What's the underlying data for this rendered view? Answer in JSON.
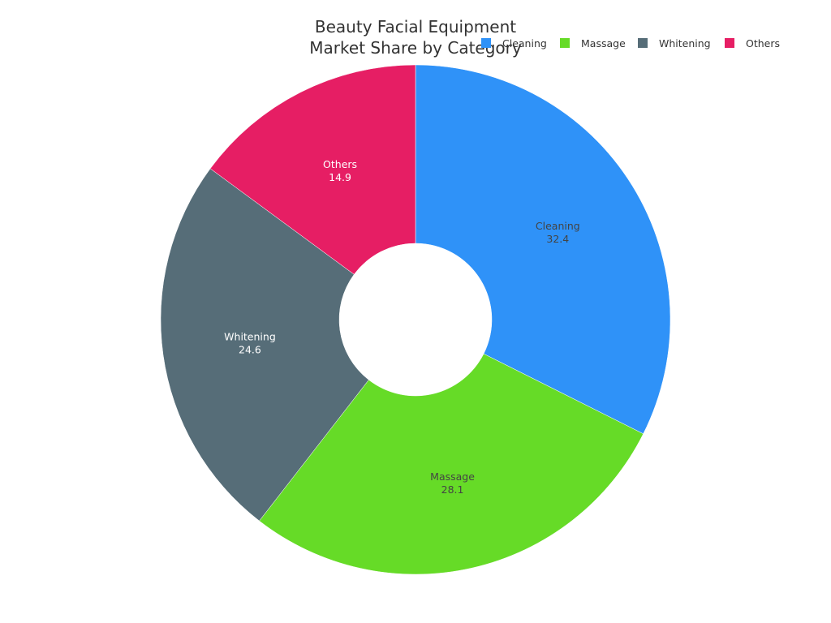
{
  "chart_data": {
    "type": "pie",
    "title_lines": [
      "Beauty Facial Equipment",
      "Market Share by Category"
    ],
    "categories": [
      "Cleaning",
      "Massage",
      "Whitening",
      "Others"
    ],
    "values": [
      32.4,
      28.1,
      24.6,
      14.9
    ],
    "colors": [
      "#2f92f8",
      "#66db27",
      "#566d78",
      "#e61e64"
    ],
    "label_colors": [
      "#444444",
      "#444444",
      "#ffffff",
      "#ffffff"
    ],
    "donut_hole": true,
    "legend_position": "top-right"
  }
}
